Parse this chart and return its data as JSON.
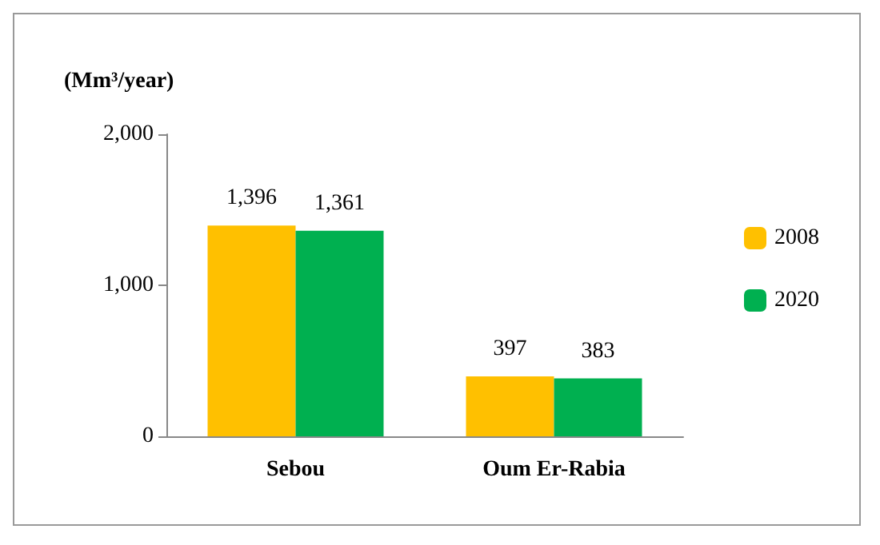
{
  "chart_data": {
    "type": "bar",
    "ylabel": "(Mm³/year)",
    "categories": [
      "Sebou",
      "Oum Er-Rabia"
    ],
    "series": [
      {
        "name": "2008",
        "color": "#ffc000",
        "values": [
          1396,
          397
        ],
        "value_labels": [
          "1,396",
          "397"
        ]
      },
      {
        "name": "2020",
        "color": "#00b050",
        "values": [
          1361,
          383
        ],
        "value_labels": [
          "1,361",
          "383"
        ]
      }
    ],
    "ylim": [
      0,
      2000
    ],
    "yticks": [
      0,
      {
        "value": 1000,
        "label": "1,000"
      },
      {
        "value": 2000,
        "label": "2,000"
      }
    ],
    "grid": false,
    "legend": "right"
  }
}
